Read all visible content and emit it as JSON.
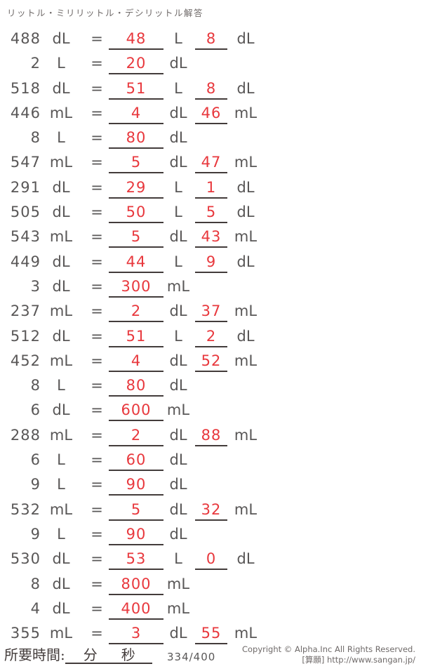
{
  "header": {
    "title": "リットル・ミリリットル・デシリットル解答"
  },
  "labels": {
    "equals": "="
  },
  "problems": [
    {
      "value": "488",
      "unit": "dL",
      "answer1": "48",
      "unit1": "L",
      "answer2": "8",
      "unit2": "dL"
    },
    {
      "value": "2",
      "unit": "L",
      "answer1": "20",
      "unit1": "dL",
      "answer2": null,
      "unit2": null
    },
    {
      "value": "518",
      "unit": "dL",
      "answer1": "51",
      "unit1": "L",
      "answer2": "8",
      "unit2": "dL"
    },
    {
      "value": "446",
      "unit": "mL",
      "answer1": "4",
      "unit1": "dL",
      "answer2": "46",
      "unit2": "mL"
    },
    {
      "value": "8",
      "unit": "L",
      "answer1": "80",
      "unit1": "dL",
      "answer2": null,
      "unit2": null
    },
    {
      "value": "547",
      "unit": "mL",
      "answer1": "5",
      "unit1": "dL",
      "answer2": "47",
      "unit2": "mL"
    },
    {
      "value": "291",
      "unit": "dL",
      "answer1": "29",
      "unit1": "L",
      "answer2": "1",
      "unit2": "dL"
    },
    {
      "value": "505",
      "unit": "dL",
      "answer1": "50",
      "unit1": "L",
      "answer2": "5",
      "unit2": "dL"
    },
    {
      "value": "543",
      "unit": "mL",
      "answer1": "5",
      "unit1": "dL",
      "answer2": "43",
      "unit2": "mL"
    },
    {
      "value": "449",
      "unit": "dL",
      "answer1": "44",
      "unit1": "L",
      "answer2": "9",
      "unit2": "dL"
    },
    {
      "value": "3",
      "unit": "dL",
      "answer1": "300",
      "unit1": "mL",
      "answer2": null,
      "unit2": null
    },
    {
      "value": "237",
      "unit": "mL",
      "answer1": "2",
      "unit1": "dL",
      "answer2": "37",
      "unit2": "mL"
    },
    {
      "value": "512",
      "unit": "dL",
      "answer1": "51",
      "unit1": "L",
      "answer2": "2",
      "unit2": "dL"
    },
    {
      "value": "452",
      "unit": "mL",
      "answer1": "4",
      "unit1": "dL",
      "answer2": "52",
      "unit2": "mL"
    },
    {
      "value": "8",
      "unit": "L",
      "answer1": "80",
      "unit1": "dL",
      "answer2": null,
      "unit2": null
    },
    {
      "value": "6",
      "unit": "dL",
      "answer1": "600",
      "unit1": "mL",
      "answer2": null,
      "unit2": null
    },
    {
      "value": "288",
      "unit": "mL",
      "answer1": "2",
      "unit1": "dL",
      "answer2": "88",
      "unit2": "mL"
    },
    {
      "value": "6",
      "unit": "L",
      "answer1": "60",
      "unit1": "dL",
      "answer2": null,
      "unit2": null
    },
    {
      "value": "9",
      "unit": "L",
      "answer1": "90",
      "unit1": "dL",
      "answer2": null,
      "unit2": null
    },
    {
      "value": "532",
      "unit": "mL",
      "answer1": "5",
      "unit1": "dL",
      "answer2": "32",
      "unit2": "mL"
    },
    {
      "value": "9",
      "unit": "L",
      "answer1": "90",
      "unit1": "dL",
      "answer2": null,
      "unit2": null
    },
    {
      "value": "530",
      "unit": "dL",
      "answer1": "53",
      "unit1": "L",
      "answer2": "0",
      "unit2": "dL"
    },
    {
      "value": "8",
      "unit": "dL",
      "answer1": "800",
      "unit1": "mL",
      "answer2": null,
      "unit2": null
    },
    {
      "value": "4",
      "unit": "dL",
      "answer1": "400",
      "unit1": "mL",
      "answer2": null,
      "unit2": null
    },
    {
      "value": "355",
      "unit": "mL",
      "answer1": "3",
      "unit1": "dL",
      "answer2": "55",
      "unit2": "mL"
    }
  ],
  "footer": {
    "time_label": "所要時間:",
    "minutes_label": "分",
    "seconds_label": "秒",
    "page_counter": "334/400",
    "copyright_line1": "Copyright © Alpha.Inc All Rights Reserved.",
    "copyright_line2": "[算願] http://www.sangan.jp/"
  },
  "colors": {
    "answer_red": "#e8383d",
    "text_gray": "#595757",
    "underline": "#433c3b",
    "muted_gray": "#6f6a69"
  }
}
